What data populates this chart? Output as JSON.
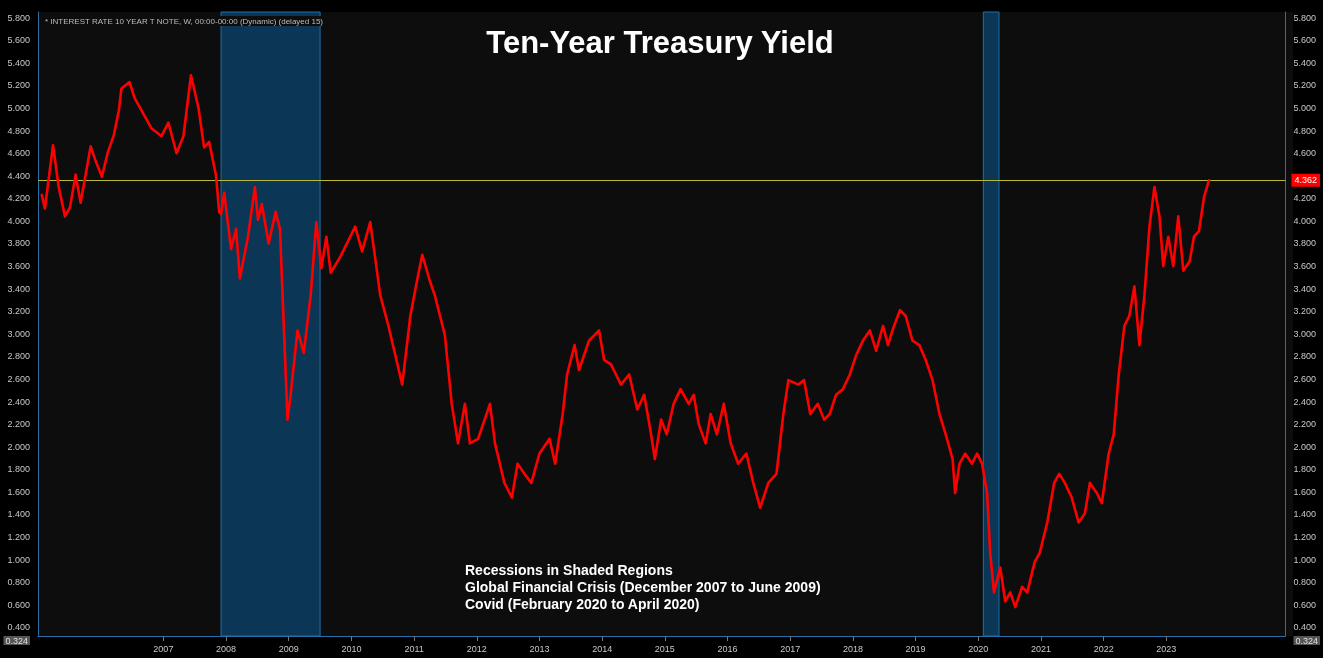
{
  "chart_data": {
    "type": "line",
    "title": "Ten-Year Treasury Yield",
    "subtitle": "* INTEREST RATE 10 YEAR T NOTE, W, 00:00-00:00 (Dynamic) (delayed 15)",
    "annotations": [
      "Recessions in Shaded Regions",
      "Global Financial Crisis (December 2007 to June 2009)",
      "Covid (February 2020 to April 2020)"
    ],
    "x": [
      2005.06,
      2005.11,
      2005.24,
      2005.33,
      2005.43,
      2005.51,
      2005.6,
      2005.68,
      2005.84,
      2005.92,
      2006.02,
      2006.11,
      2006.21,
      2006.29,
      2006.33,
      2006.46,
      2006.54,
      2006.81,
      2006.97,
      2007.08,
      2007.21,
      2007.32,
      2007.44,
      2007.56,
      2007.65,
      2007.73,
      2007.84,
      2007.89,
      2007.92,
      2007.97,
      2008.08,
      2008.16,
      2008.22,
      2008.35,
      2008.46,
      2008.51,
      2008.57,
      2008.68,
      2008.79,
      2008.86,
      2008.98,
      2009.03,
      2009.14,
      2009.24,
      2009.35,
      2009.44,
      2009.52,
      2009.6,
      2009.67,
      2009.83,
      2009.98,
      2010.06,
      2010.17,
      2010.3,
      2010.46,
      2010.59,
      2010.7,
      2010.81,
      2010.94,
      2011.06,
      2011.13,
      2011.25,
      2011.33,
      2011.49,
      2011.6,
      2011.7,
      2011.81,
      2011.89,
      2012.02,
      2012.21,
      2012.29,
      2012.44,
      2012.56,
      2012.65,
      2012.76,
      2012.87,
      2013.0,
      2013.16,
      2013.25,
      2013.37,
      2013.44,
      2013.56,
      2013.63,
      2013.79,
      2013.95,
      2014.03,
      2014.14,
      2014.3,
      2014.43,
      2014.56,
      2014.67,
      2014.78,
      2014.84,
      2014.94,
      2015.03,
      2015.14,
      2015.25,
      2015.38,
      2015.46,
      2015.54,
      2015.65,
      2015.73,
      2015.83,
      2015.94,
      2016.05,
      2016.17,
      2016.3,
      2016.41,
      2016.52,
      2016.65,
      2016.78,
      2016.89,
      2016.97,
      2017.13,
      2017.22,
      2017.32,
      2017.44,
      2017.54,
      2017.63,
      2017.73,
      2017.84,
      2017.95,
      2018.05,
      2018.16,
      2018.27,
      2018.37,
      2018.48,
      2018.56,
      2018.63,
      2018.75,
      2018.84,
      2018.95,
      2019.06,
      2019.16,
      2019.27,
      2019.38,
      2019.48,
      2019.59,
      2019.63,
      2019.7,
      2019.79,
      2019.9,
      2019.98,
      2020.06,
      2020.14,
      2020.19,
      2020.25,
      2020.35,
      2020.43,
      2020.51,
      2020.59,
      2020.7,
      2020.78,
      2020.9,
      2020.98,
      2021.1,
      2021.21,
      2021.29,
      2021.38,
      2021.49,
      2021.6,
      2021.7,
      2021.78,
      2021.89,
      2021.97,
      2022.08,
      2022.16,
      2022.24,
      2022.33,
      2022.41,
      2022.49,
      2022.57,
      2022.65,
      2022.73,
      2022.81,
      2022.89,
      2022.95,
      2023.03,
      2023.11,
      2023.19,
      2023.27,
      2023.37,
      2023.44,
      2023.52,
      2023.6,
      2023.68
    ],
    "series": [
      {
        "color": "#ff0000",
        "values": [
          4.23,
          4.11,
          4.67,
          4.3,
          4.04,
          4.12,
          4.41,
          4.16,
          4.66,
          4.53,
          4.39,
          4.6,
          4.76,
          4.98,
          5.17,
          5.23,
          5.09,
          4.82,
          4.75,
          4.87,
          4.6,
          4.75,
          5.29,
          5.0,
          4.65,
          4.7,
          4.4,
          4.08,
          4.06,
          4.25,
          3.75,
          3.93,
          3.49,
          3.86,
          4.3,
          4.01,
          4.15,
          3.8,
          4.08,
          3.93,
          2.24,
          2.46,
          3.03,
          2.83,
          3.34,
          3.99,
          3.58,
          3.86,
          3.54,
          3.69,
          3.86,
          3.95,
          3.73,
          3.99,
          3.34,
          3.07,
          2.81,
          2.55,
          3.16,
          3.51,
          3.7,
          3.47,
          3.34,
          2.99,
          2.38,
          2.03,
          2.38,
          2.03,
          2.07,
          2.38,
          2.03,
          1.68,
          1.55,
          1.85,
          1.76,
          1.68,
          1.94,
          2.07,
          1.85,
          2.29,
          2.64,
          2.9,
          2.68,
          2.94,
          3.03,
          2.77,
          2.73,
          2.55,
          2.64,
          2.33,
          2.46,
          2.11,
          1.89,
          2.24,
          2.11,
          2.38,
          2.51,
          2.38,
          2.46,
          2.2,
          2.03,
          2.29,
          2.11,
          2.38,
          2.03,
          1.85,
          1.94,
          1.68,
          1.46,
          1.68,
          1.76,
          2.29,
          2.59,
          2.55,
          2.59,
          2.29,
          2.38,
          2.24,
          2.29,
          2.46,
          2.51,
          2.64,
          2.81,
          2.94,
          3.03,
          2.85,
          3.07,
          2.9,
          3.03,
          3.21,
          3.16,
          2.94,
          2.9,
          2.77,
          2.59,
          2.29,
          2.11,
          1.89,
          1.59,
          1.85,
          1.94,
          1.85,
          1.94,
          1.85,
          1.59,
          1.06,
          0.71,
          0.93,
          0.63,
          0.71,
          0.58,
          0.76,
          0.71,
          0.98,
          1.06,
          1.33,
          1.68,
          1.76,
          1.68,
          1.55,
          1.33,
          1.41,
          1.68,
          1.59,
          1.5,
          1.94,
          2.11,
          2.64,
          3.07,
          3.16,
          3.42,
          2.9,
          3.34,
          3.95,
          4.3,
          4.04,
          3.6,
          3.86,
          3.6,
          4.04,
          3.56,
          3.64,
          3.86,
          3.91,
          4.21,
          4.36
        ]
      }
    ],
    "xlim": [
      2005.0,
      2024.9
    ],
    "xticks": [
      2007,
      2008,
      2009,
      2010,
      2011,
      2012,
      2013,
      2014,
      2015,
      2016,
      2017,
      2018,
      2019,
      2020,
      2021,
      2022,
      2023
    ],
    "ylim": [
      0.324,
      5.85
    ],
    "yticks": [
      {
        "value": 0.324,
        "label": "0.324"
      },
      {
        "value": 0.4,
        "label": "0.400"
      },
      {
        "value": 0.6,
        "label": "0.600"
      },
      {
        "value": 0.8,
        "label": "0.800"
      },
      {
        "value": 1.0,
        "label": "1.000"
      },
      {
        "value": 1.2,
        "label": "1.200"
      },
      {
        "value": 1.4,
        "label": "1.400"
      },
      {
        "value": 1.6,
        "label": "1.600"
      },
      {
        "value": 1.8,
        "label": "1.800"
      },
      {
        "value": 2.0,
        "label": "2.000"
      },
      {
        "value": 2.2,
        "label": "2.200"
      },
      {
        "value": 2.4,
        "label": "2.400"
      },
      {
        "value": 2.6,
        "label": "2.600"
      },
      {
        "value": 2.8,
        "label": "2.800"
      },
      {
        "value": 3.0,
        "label": "3.000"
      },
      {
        "value": 3.2,
        "label": "3.200"
      },
      {
        "value": 3.4,
        "label": "3.400"
      },
      {
        "value": 3.6,
        "label": "3.600"
      },
      {
        "value": 3.8,
        "label": "3.800"
      },
      {
        "value": 4.0,
        "label": "4.000"
      },
      {
        "value": 4.2,
        "label": "4.200"
      },
      {
        "value": 4.4,
        "label": "4.400"
      },
      {
        "value": 4.6,
        "label": "4.600"
      },
      {
        "value": 4.8,
        "label": "4.800"
      },
      {
        "value": 5.0,
        "label": "5.000"
      },
      {
        "value": 5.2,
        "label": "5.200"
      },
      {
        "value": 5.4,
        "label": "5.400"
      },
      {
        "value": 5.6,
        "label": "5.600"
      },
      {
        "value": 5.8,
        "label": "5.800"
      }
    ],
    "y2lim": [
      0.324,
      5.85
    ],
    "y2ticks": [
      {
        "value": 0.324,
        "label": "0.324"
      },
      {
        "value": 0.4,
        "label": "0.400"
      },
      {
        "value": 0.6,
        "label": "0.600"
      },
      {
        "value": 0.8,
        "label": "0.800"
      },
      {
        "value": 1.0,
        "label": "1.000"
      },
      {
        "value": 1.2,
        "label": "1.200"
      },
      {
        "value": 1.4,
        "label": "1.400"
      },
      {
        "value": 1.6,
        "label": "1.600"
      },
      {
        "value": 1.8,
        "label": "1.800"
      },
      {
        "value": 2.0,
        "label": "2.000"
      },
      {
        "value": 2.2,
        "label": "2.200"
      },
      {
        "value": 2.4,
        "label": "2.400"
      },
      {
        "value": 2.6,
        "label": "2.600"
      },
      {
        "value": 2.8,
        "label": "2.800"
      },
      {
        "value": 3.0,
        "label": "3.000"
      },
      {
        "value": 3.2,
        "label": "3.200"
      },
      {
        "value": 3.4,
        "label": "3.400"
      },
      {
        "value": 3.6,
        "label": "3.600"
      },
      {
        "value": 3.8,
        "label": "3.800"
      },
      {
        "value": 4.0,
        "label": "4.000"
      },
      {
        "value": 4.2,
        "label": "4.200"
      },
      {
        "value": 4.6,
        "label": "4.600"
      },
      {
        "value": 4.8,
        "label": "4.800"
      },
      {
        "value": 5.0,
        "label": "5.000"
      },
      {
        "value": 5.2,
        "label": "5.200"
      },
      {
        "value": 5.4,
        "label": "5.400"
      },
      {
        "value": 5.6,
        "label": "5.600"
      },
      {
        "value": 5.8,
        "label": "5.800"
      }
    ],
    "ref_lines": [
      {
        "axis": "y",
        "value": 4.362,
        "label": "4.362",
        "color": "#b8b83a"
      }
    ],
    "bands": [
      {
        "axis": "x",
        "from": 2007.92,
        "to": 2009.5,
        "color": "#0b3656"
      },
      {
        "axis": "x",
        "from": 2020.08,
        "to": 2020.33,
        "color": "#0b3656"
      }
    ],
    "grid": false,
    "marker": "none",
    "line_style": "solid"
  }
}
